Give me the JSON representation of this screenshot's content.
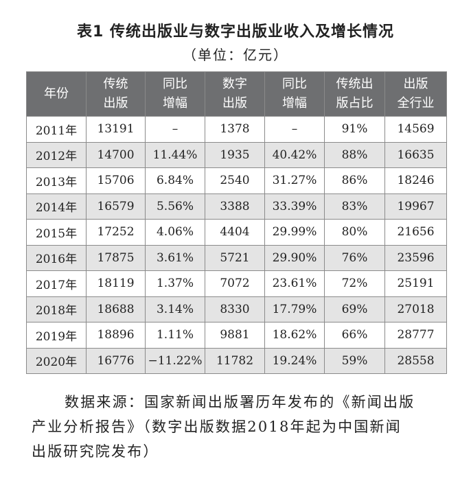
{
  "header": {
    "title": "表1  传统出版业与数字出版业收入及增长情况",
    "unit": "（单位：亿元）"
  },
  "table": {
    "columns": [
      [
        "年份"
      ],
      [
        "传统",
        "出版"
      ],
      [
        "同比",
        "增幅"
      ],
      [
        "数字",
        "出版"
      ],
      [
        "同比",
        "增幅"
      ],
      [
        "传统出",
        "版占比"
      ],
      [
        "出版",
        "全行业"
      ]
    ],
    "rows": [
      [
        "2011年",
        "13191",
        "–",
        "1378",
        "–",
        "91%",
        "14569"
      ],
      [
        "2012年",
        "14700",
        "11.44%",
        "1935",
        "40.42%",
        "88%",
        "16635"
      ],
      [
        "2013年",
        "15706",
        "6.84%",
        "2540",
        "31.27%",
        "86%",
        "18246"
      ],
      [
        "2014年",
        "16579",
        "5.56%",
        "3388",
        "33.39%",
        "83%",
        "19967"
      ],
      [
        "2015年",
        "17252",
        "4.06%",
        "4404",
        "29.99%",
        "80%",
        "21656"
      ],
      [
        "2016年",
        "17875",
        "3.61%",
        "5721",
        "29.90%",
        "76%",
        "23596"
      ],
      [
        "2017年",
        "18119",
        "1.37%",
        "7072",
        "23.61%",
        "72%",
        "25191"
      ],
      [
        "2018年",
        "18688",
        "3.14%",
        "8330",
        "17.79%",
        "69%",
        "27018"
      ],
      [
        "2019年",
        "18896",
        "1.11%",
        "9881",
        "18.62%",
        "66%",
        "28777"
      ],
      [
        "2020年",
        "16776",
        "−11.22%",
        "11782",
        "19.24%",
        "59%",
        "28558"
      ]
    ]
  },
  "note": {
    "lines": [
      "数据来源：国家新闻出版署历年发布的《新闻出版",
      "产业分析报告》（数字出版数据2018年起为中国新闻",
      "出版研究院发布）"
    ]
  }
}
